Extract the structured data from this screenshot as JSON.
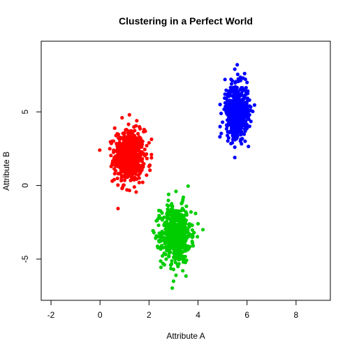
{
  "chart_data": {
    "type": "scatter",
    "title": "Clustering in a Perfect World",
    "xlabel": "Attribute A",
    "ylabel": "Attribute B",
    "xlim": [
      -2.4,
      9.4
    ],
    "ylim": [
      -7.8,
      9.8
    ],
    "xticks": [
      -2,
      0,
      2,
      4,
      6,
      8
    ],
    "yticks": [
      -5,
      0,
      5
    ],
    "xtick_labels": [
      "-2",
      "0",
      "2",
      "4",
      "6",
      "8"
    ],
    "ytick_labels": [
      "-5",
      "0",
      "5"
    ],
    "grid": false,
    "legend": "none",
    "series": [
      {
        "color": "#ff0000",
        "center": [
          1.2,
          2.0
        ],
        "spread": [
          0.3,
          0.85
        ],
        "points": [
          [
            1.2,
            4.8
          ],
          [
            0.9,
            4.6
          ],
          [
            1.5,
            4.4
          ],
          [
            0.6,
            3.9
          ],
          [
            1.8,
            3.8
          ],
          [
            0.5,
            3.0
          ],
          [
            2.0,
            2.9
          ],
          [
            0.4,
            2.5
          ],
          [
            2.1,
            2.1
          ],
          [
            0.5,
            1.5
          ],
          [
            2.0,
            1.3
          ],
          [
            0.6,
            0.8
          ],
          [
            1.9,
            0.7
          ],
          [
            0.5,
            0.3
          ],
          [
            0.9,
            -0.2
          ],
          [
            1.4,
            -0.1
          ],
          [
            1.1,
            -0.3
          ],
          [
            1.6,
            0.2
          ]
        ]
      },
      {
        "color": "#00cd00",
        "center": [
          3.1,
          -3.3
        ],
        "spread": [
          0.3,
          0.95
        ],
        "points": [
          [
            3.1,
            -0.4
          ],
          [
            2.8,
            -0.6
          ],
          [
            3.4,
            -0.8
          ],
          [
            2.4,
            -1.7
          ],
          [
            3.9,
            -1.9
          ],
          [
            2.3,
            -2.4
          ],
          [
            4.0,
            -2.6
          ],
          [
            4.2,
            -3.0
          ],
          [
            2.2,
            -3.2
          ],
          [
            2.5,
            -4.2
          ],
          [
            3.8,
            -4.1
          ],
          [
            2.7,
            -5.0
          ],
          [
            3.4,
            -5.2
          ],
          [
            3.0,
            -5.7
          ],
          [
            3.1,
            -6.1
          ],
          [
            3.0,
            -6.5
          ]
        ]
      },
      {
        "color": "#0000ff",
        "center": [
          5.6,
          5.1
        ],
        "spread": [
          0.22,
          0.85
        ],
        "points": [
          [
            5.6,
            8.2
          ],
          [
            5.5,
            7.9
          ],
          [
            5.9,
            7.6
          ],
          [
            5.1,
            7.2
          ],
          [
            6.0,
            7.0
          ],
          [
            5.1,
            6.2
          ],
          [
            6.1,
            5.8
          ],
          [
            4.9,
            5.5
          ],
          [
            6.1,
            4.8
          ],
          [
            5.0,
            4.3
          ],
          [
            4.9,
            4.0
          ],
          [
            6.0,
            3.9
          ],
          [
            5.2,
            3.4
          ],
          [
            5.6,
            3.3
          ],
          [
            5.4,
            2.9
          ],
          [
            5.5,
            2.6
          ],
          [
            5.5,
            1.9
          ]
        ]
      }
    ]
  }
}
